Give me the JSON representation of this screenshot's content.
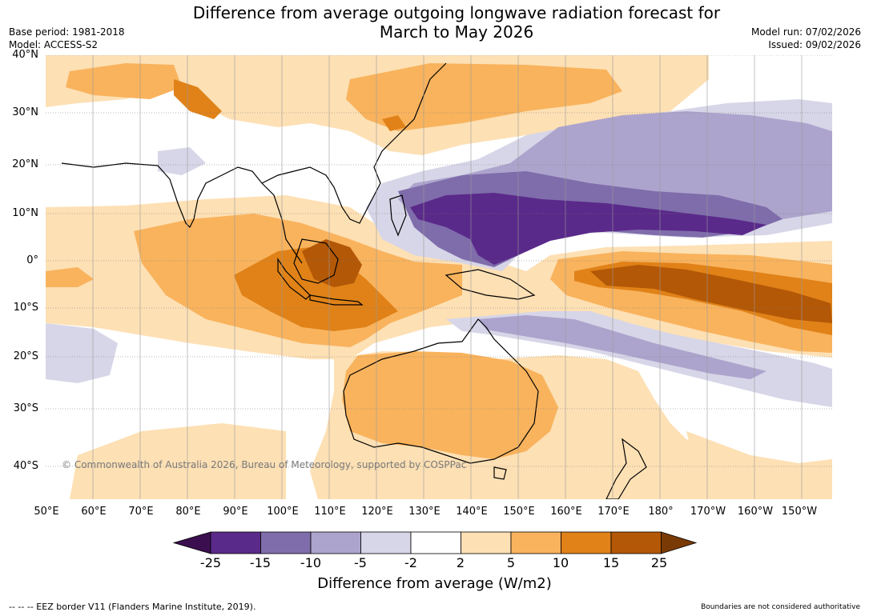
{
  "title_line1": "Difference from average outgoing longwave radiation forecast for",
  "title_line2": "March to May 2026",
  "base_period": "Base period: 1981-2018",
  "model": "Model: ACCESS-S2",
  "model_run": "Model run: 07/02/2026",
  "issued": "Issued: 09/02/2026",
  "lat_labels": [
    "40°N",
    "30°N",
    "20°N",
    "10°N",
    "0°",
    "10°S",
    "20°S",
    "30°S",
    "40°S"
  ],
  "lon_labels": [
    "50°E",
    "60°E",
    "70°E",
    "80°E",
    "90°E",
    "100°E",
    "110°E",
    "120°E",
    "130°E",
    "140°E",
    "150°E",
    "160°E",
    "170°E",
    "180°",
    "170°W",
    "160°W",
    "150°W"
  ],
  "copyright": "© Commonwealth of Australia 2026, Bureau of Meteorology, supported by COSPPac",
  "colorbar": {
    "ticks": [
      "-25",
      "-15",
      "-10",
      "-5",
      "-2",
      "2",
      "5",
      "10",
      "15",
      "25"
    ],
    "colors": [
      "#3b0f4f",
      "#5a2a8a",
      "#7f6dab",
      "#ada4cd",
      "#d7d6e8",
      "#ffffff",
      "#fde0b4",
      "#f9b35d",
      "#e08218",
      "#b35806",
      "#7a3a06"
    ],
    "title": "Difference from average (W/m2)"
  },
  "footer_left": "--  --  -- EEZ border V11 (Flanders Marine Institute, 2019).",
  "footer_right": "Boundaries are not considered authoritative"
}
